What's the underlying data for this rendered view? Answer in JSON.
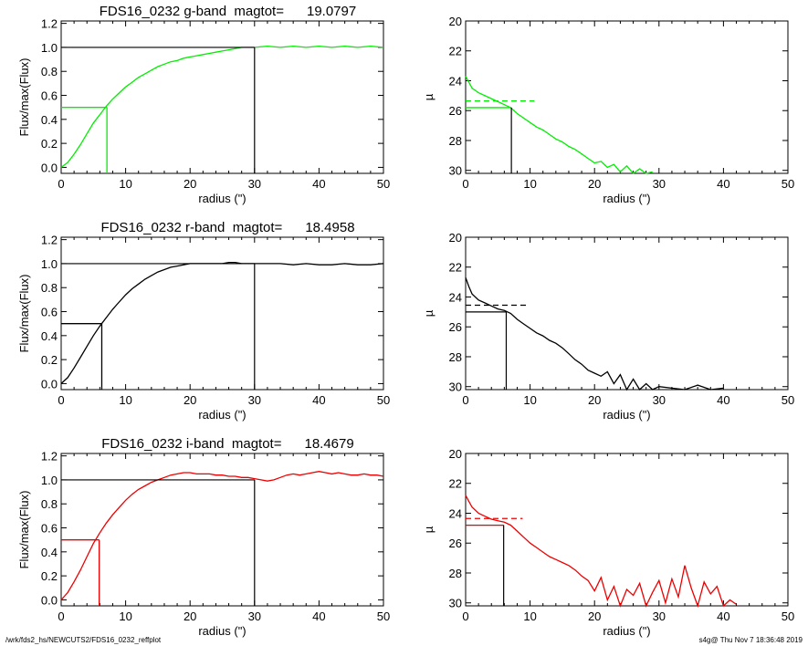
{
  "footer": {
    "path": "/wrk/fds2_hs/NEWCUTS2/FDS16_0232_reffplot",
    "stamp": "s4g@  Thu Nov  7 18:36:48 2019"
  },
  "chart_data": [
    {
      "type": "line",
      "title": "FDS16_0232 g-band  magtot=      19.0797",
      "xlabel": "radius (\")",
      "ylabel": "Flux/max(Flux)",
      "xlim": [
        0,
        50
      ],
      "ylim": [
        -0.05,
        1.22
      ],
      "xticks": [
        "0",
        "10",
        "20",
        "30",
        "40",
        "50"
      ],
      "yticks": [
        "0.0",
        "0.2",
        "0.4",
        "0.6",
        "0.8",
        "1.0",
        "1.2"
      ],
      "color": "#00ee00",
      "series": [
        {
          "x": [
            0,
            1,
            2,
            3,
            4,
            5,
            6,
            7,
            8,
            9,
            10,
            11,
            12,
            13,
            14,
            15,
            16,
            17,
            18,
            19,
            20,
            21,
            22,
            23,
            24,
            25,
            26,
            27,
            28,
            29,
            30,
            32,
            34,
            36,
            38,
            40,
            42,
            44,
            46,
            48,
            50
          ],
          "y": [
            0.0,
            0.04,
            0.11,
            0.19,
            0.28,
            0.37,
            0.44,
            0.51,
            0.57,
            0.62,
            0.67,
            0.71,
            0.75,
            0.78,
            0.81,
            0.84,
            0.86,
            0.88,
            0.89,
            0.91,
            0.92,
            0.93,
            0.94,
            0.95,
            0.96,
            0.97,
            0.98,
            0.99,
            1.0,
            1.0,
            1.0,
            1.01,
            1.0,
            1.01,
            1.0,
            1.01,
            1.0,
            1.01,
            1.0,
            1.01,
            1.0
          ]
        }
      ],
      "guides": {
        "half_radius": 7.1,
        "half_flux": 0.5,
        "total_radius": 30,
        "total_flux": 1.0
      }
    },
    {
      "type": "line",
      "xlabel": "radius (\")",
      "ylabel": "µ",
      "xlim": [
        0,
        50
      ],
      "ylim": [
        30.2,
        20
      ],
      "inverted_y": true,
      "xticks": [
        "0",
        "10",
        "20",
        "30",
        "40",
        "50"
      ],
      "yticks": [
        "20",
        "22",
        "24",
        "26",
        "28",
        "30"
      ],
      "color": "#00ee00",
      "series": [
        {
          "x": [
            0,
            0.5,
            1,
            2,
            3,
            4,
            5,
            6,
            7,
            8,
            9,
            10,
            11,
            12,
            13,
            14,
            15,
            16,
            17,
            18,
            19,
            20,
            21,
            22,
            23,
            24,
            25,
            26,
            27,
            28,
            29
          ],
          "y": [
            23.7,
            24.1,
            24.5,
            24.8,
            25.0,
            25.2,
            25.4,
            25.6,
            25.8,
            26.2,
            26.5,
            26.8,
            27.1,
            27.3,
            27.6,
            27.9,
            28.1,
            28.4,
            28.6,
            28.9,
            29.2,
            29.5,
            29.4,
            29.8,
            29.6,
            30.1,
            29.7,
            30.2,
            29.9,
            30.2,
            30.1
          ]
        }
      ],
      "guides": {
        "half_radius": 7.1,
        "mu_half": 25.8,
        "mu_mean": 25.35
      }
    },
    {
      "type": "line",
      "title": "FDS16_0232 r-band  magtot=      18.4958",
      "xlabel": "radius (\")",
      "ylabel": "Flux/max(Flux)",
      "xlim": [
        0,
        50
      ],
      "ylim": [
        -0.05,
        1.22
      ],
      "xticks": [
        "0",
        "10",
        "20",
        "30",
        "40",
        "50"
      ],
      "yticks": [
        "0.0",
        "0.2",
        "0.4",
        "0.6",
        "0.8",
        "1.0",
        "1.2"
      ],
      "color": "#000000",
      "series": [
        {
          "x": [
            0,
            1,
            2,
            3,
            4,
            5,
            6,
            7,
            8,
            9,
            10,
            11,
            12,
            13,
            14,
            15,
            16,
            17,
            18,
            19,
            20,
            21,
            22,
            23,
            24,
            25,
            26,
            27,
            28,
            29,
            30,
            32,
            34,
            36,
            38,
            40,
            42,
            44,
            46,
            48,
            50
          ],
          "y": [
            0.0,
            0.05,
            0.13,
            0.22,
            0.31,
            0.4,
            0.48,
            0.55,
            0.62,
            0.68,
            0.74,
            0.79,
            0.83,
            0.87,
            0.9,
            0.93,
            0.95,
            0.97,
            0.98,
            0.99,
            1.0,
            1.0,
            1.0,
            1.0,
            1.0,
            1.0,
            1.01,
            1.01,
            1.0,
            1.0,
            1.0,
            1.0,
            1.0,
            0.99,
            1.0,
            0.99,
            0.99,
            1.0,
            0.99,
            0.99,
            1.0
          ]
        }
      ],
      "guides": {
        "half_radius": 6.3,
        "half_flux": 0.5,
        "total_radius": 30,
        "total_flux": 1.0
      }
    },
    {
      "type": "line",
      "xlabel": "radius (\")",
      "ylabel": "µ",
      "xlim": [
        0,
        50
      ],
      "ylim": [
        30.2,
        20
      ],
      "inverted_y": true,
      "xticks": [
        "0",
        "10",
        "20",
        "30",
        "40",
        "50"
      ],
      "yticks": [
        "20",
        "22",
        "24",
        "26",
        "28",
        "30"
      ],
      "color": "#000000",
      "series": [
        {
          "x": [
            0,
            0.5,
            1,
            2,
            3,
            4,
            5,
            6,
            7,
            8,
            9,
            10,
            11,
            12,
            13,
            14,
            15,
            16,
            17,
            18,
            19,
            20,
            21,
            22,
            23,
            24,
            25,
            26,
            27,
            28,
            29,
            30,
            32,
            34,
            36,
            38,
            40
          ],
          "y": [
            22.7,
            23.3,
            23.8,
            24.2,
            24.4,
            24.6,
            24.8,
            24.9,
            25.1,
            25.5,
            25.8,
            26.1,
            26.4,
            26.6,
            26.9,
            27.1,
            27.4,
            27.8,
            28.2,
            28.5,
            28.9,
            29.1,
            29.3,
            29.0,
            29.8,
            29.2,
            30.2,
            29.5,
            30.2,
            29.8,
            30.2,
            30.0,
            30.1,
            30.2,
            29.9,
            30.2,
            30.1
          ]
        }
      ],
      "guides": {
        "half_radius": 6.3,
        "mu_half": 25.0,
        "mu_mean": 24.55
      }
    },
    {
      "type": "line",
      "title": "FDS16_0232 i-band  magtot=      18.4679",
      "xlabel": "radius (\")",
      "ylabel": "Flux/max(Flux)",
      "xlim": [
        0,
        50
      ],
      "ylim": [
        -0.05,
        1.22
      ],
      "xticks": [
        "0",
        "10",
        "20",
        "30",
        "40",
        "50"
      ],
      "yticks": [
        "0.0",
        "0.2",
        "0.4",
        "0.6",
        "0.8",
        "1.0",
        "1.2"
      ],
      "color": "#ee0000",
      "series": [
        {
          "x": [
            0,
            1,
            2,
            3,
            4,
            5,
            6,
            7,
            8,
            9,
            10,
            11,
            12,
            13,
            14,
            15,
            16,
            17,
            18,
            19,
            20,
            21,
            22,
            23,
            24,
            25,
            26,
            27,
            28,
            29,
            30,
            31,
            32,
            33,
            34,
            35,
            36,
            37,
            38,
            39,
            40,
            41,
            42,
            43,
            44,
            45,
            46,
            47,
            48,
            49,
            50
          ],
          "y": [
            0.0,
            0.06,
            0.15,
            0.25,
            0.36,
            0.47,
            0.56,
            0.64,
            0.71,
            0.77,
            0.83,
            0.88,
            0.92,
            0.95,
            0.98,
            1.0,
            1.02,
            1.04,
            1.05,
            1.06,
            1.06,
            1.05,
            1.05,
            1.05,
            1.04,
            1.04,
            1.03,
            1.03,
            1.02,
            1.02,
            1.01,
            1.0,
            0.99,
            1.0,
            1.02,
            1.04,
            1.05,
            1.04,
            1.05,
            1.06,
            1.07,
            1.06,
            1.05,
            1.06,
            1.05,
            1.04,
            1.04,
            1.05,
            1.04,
            1.04,
            1.03
          ]
        }
      ],
      "guides": {
        "half_radius": 5.9,
        "half_flux": 0.5,
        "total_radius": 30,
        "total_flux": 1.0
      }
    },
    {
      "type": "line",
      "xlabel": "radius (\")",
      "ylabel": "µ",
      "xlim": [
        0,
        50
      ],
      "ylim": [
        30.2,
        20
      ],
      "inverted_y": true,
      "xticks": [
        "0",
        "10",
        "20",
        "30",
        "40",
        "50"
      ],
      "yticks": [
        "20",
        "22",
        "24",
        "26",
        "28",
        "30"
      ],
      "color": "#ee0000",
      "series": [
        {
          "x": [
            0,
            0.5,
            1,
            2,
            3,
            4,
            5,
            6,
            7,
            8,
            9,
            10,
            11,
            12,
            13,
            14,
            15,
            16,
            17,
            18,
            19,
            20,
            21,
            22,
            23,
            24,
            25,
            26,
            27,
            28,
            29,
            30,
            31,
            32,
            33,
            34,
            35,
            36,
            37,
            38,
            39,
            40,
            41,
            42
          ],
          "y": [
            22.8,
            23.2,
            23.6,
            24.0,
            24.2,
            24.4,
            24.5,
            24.6,
            24.8,
            25.2,
            25.6,
            26.0,
            26.3,
            26.6,
            26.9,
            27.1,
            27.3,
            27.5,
            27.8,
            28.2,
            28.5,
            29.2,
            28.3,
            29.8,
            28.9,
            30.2,
            29.1,
            29.5,
            28.7,
            30.2,
            29.3,
            28.5,
            30.0,
            28.4,
            29.6,
            27.5,
            29.0,
            30.2,
            28.6,
            29.4,
            28.9,
            30.2,
            29.8,
            30.1
          ]
        }
      ],
      "guides": {
        "half_radius": 5.9,
        "mu_half": 24.8,
        "mu_mean": 24.35
      }
    }
  ]
}
